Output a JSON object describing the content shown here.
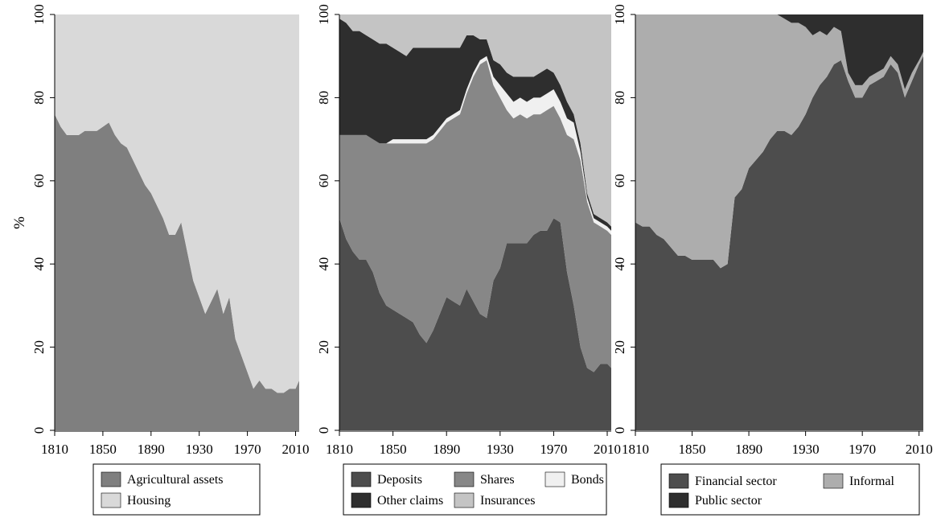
{
  "chart_data": [
    {
      "type": "area",
      "stacked": true,
      "ylabel": "%",
      "ylim": [
        0,
        100
      ],
      "xlim": [
        1810,
        2013
      ],
      "x_ticks": [
        "1810",
        "1850",
        "1890",
        "1930",
        "1970",
        "2010"
      ],
      "y_ticks": [
        "0",
        "20",
        "40",
        "60",
        "80",
        "100"
      ],
      "legend_position": "bottom",
      "x": [
        1810,
        1815,
        1820,
        1825,
        1830,
        1835,
        1840,
        1845,
        1850,
        1855,
        1860,
        1865,
        1870,
        1875,
        1880,
        1885,
        1890,
        1895,
        1900,
        1905,
        1910,
        1915,
        1920,
        1925,
        1930,
        1935,
        1940,
        1945,
        1950,
        1955,
        1960,
        1965,
        1970,
        1975,
        1980,
        1985,
        1990,
        1995,
        2000,
        2005,
        2010,
        2013
      ],
      "series": [
        {
          "name": "Agricultural assets",
          "color": "#7f7f7f",
          "values": [
            76,
            73,
            71,
            71,
            71,
            72,
            72,
            72,
            73,
            74,
            71,
            69,
            68,
            65,
            62,
            59,
            57,
            54,
            51,
            47,
            47,
            50,
            43,
            36,
            32,
            28,
            31,
            34,
            28,
            32,
            22,
            18,
            14,
            10,
            12,
            10,
            10,
            9,
            9,
            10,
            10,
            12
          ]
        },
        {
          "name": "Housing",
          "color": "#d9d9d9",
          "values": [
            24,
            27,
            29,
            29,
            29,
            28,
            28,
            28,
            27,
            26,
            29,
            31,
            32,
            35,
            38,
            41,
            43,
            46,
            49,
            53,
            53,
            50,
            57,
            64,
            68,
            72,
            69,
            66,
            72,
            68,
            78,
            82,
            86,
            90,
            88,
            90,
            90,
            91,
            91,
            90,
            90,
            88
          ]
        }
      ]
    },
    {
      "type": "area",
      "stacked": true,
      "ylim": [
        0,
        100
      ],
      "xlim": [
        1810,
        2013
      ],
      "x_ticks": [
        "1810",
        "1850",
        "1890",
        "1930",
        "1970",
        "2010"
      ],
      "y_ticks": [
        "0",
        "20",
        "40",
        "60",
        "80",
        "100"
      ],
      "legend_position": "bottom",
      "x": [
        1810,
        1815,
        1820,
        1825,
        1830,
        1835,
        1840,
        1845,
        1850,
        1855,
        1860,
        1865,
        1870,
        1875,
        1880,
        1885,
        1890,
        1895,
        1900,
        1905,
        1910,
        1915,
        1920,
        1925,
        1930,
        1935,
        1940,
        1945,
        1950,
        1955,
        1960,
        1965,
        1970,
        1975,
        1980,
        1985,
        1990,
        1995,
        2000,
        2005,
        2010,
        2013
      ],
      "series": [
        {
          "name": "Deposits",
          "color": "#4d4d4d",
          "values": [
            51,
            46,
            43,
            41,
            41,
            38,
            33,
            30,
            29,
            28,
            27,
            26,
            23,
            21,
            24,
            28,
            32,
            31,
            30,
            34,
            31,
            28,
            27,
            36,
            39,
            45,
            45,
            45,
            45,
            47,
            48,
            48,
            51,
            50,
            38,
            30,
            20,
            15,
            14,
            16,
            16,
            15
          ]
        },
        {
          "name": "Shares",
          "color": "#878787",
          "values": [
            20,
            25,
            28,
            30,
            30,
            32,
            36,
            39,
            40,
            41,
            42,
            43,
            46,
            48,
            46,
            44,
            42,
            44,
            46,
            47,
            54,
            60,
            62,
            47,
            41,
            32,
            30,
            31,
            30,
            29,
            28,
            29,
            27,
            25,
            33,
            40,
            45,
            40,
            36,
            33,
            32,
            32
          ]
        },
        {
          "name": "Bonds",
          "color": "#f0f0f0",
          "values": [
            0,
            0,
            0,
            0,
            0,
            0,
            0,
            0,
            1,
            1,
            1,
            1,
            1,
            1,
            1,
            1,
            1,
            1,
            1,
            1,
            1,
            1,
            1,
            2,
            3,
            4,
            4,
            4,
            4,
            4,
            4,
            4,
            4,
            4,
            4,
            4,
            2,
            1,
            1,
            1,
            1,
            1
          ]
        },
        {
          "name": "Other claims",
          "color": "#2e2e2e",
          "values": [
            28,
            27,
            25,
            25,
            24,
            24,
            24,
            24,
            22,
            21,
            20,
            22,
            22,
            22,
            21,
            19,
            17,
            16,
            15,
            13,
            9,
            5,
            4,
            4,
            5,
            5,
            6,
            5,
            6,
            5,
            6,
            6,
            4,
            4,
            4,
            2,
            2,
            1,
            1,
            1,
            1,
            1
          ]
        },
        {
          "name": "Insurances",
          "color": "#c4c4c4",
          "values": [
            1,
            2,
            4,
            4,
            5,
            6,
            7,
            7,
            8,
            9,
            10,
            8,
            8,
            8,
            8,
            8,
            8,
            8,
            8,
            5,
            5,
            6,
            6,
            11,
            12,
            14,
            15,
            15,
            15,
            15,
            14,
            13,
            14,
            17,
            21,
            24,
            31,
            43,
            48,
            49,
            50,
            51
          ]
        }
      ]
    },
    {
      "type": "area",
      "stacked": true,
      "ylim": [
        0,
        100
      ],
      "xlim": [
        1810,
        2013
      ],
      "x_ticks": [
        "1810",
        "1850",
        "1890",
        "1930",
        "1970",
        "2010"
      ],
      "y_ticks": [
        "0",
        "20",
        "40",
        "60",
        "80",
        "100"
      ],
      "legend_position": "bottom",
      "x": [
        1810,
        1815,
        1820,
        1825,
        1830,
        1835,
        1840,
        1845,
        1850,
        1855,
        1860,
        1865,
        1870,
        1875,
        1880,
        1885,
        1890,
        1895,
        1900,
        1905,
        1910,
        1915,
        1920,
        1925,
        1930,
        1935,
        1940,
        1945,
        1950,
        1955,
        1960,
        1965,
        1970,
        1975,
        1980,
        1985,
        1990,
        1995,
        2000,
        2005,
        2010,
        2013
      ],
      "series": [
        {
          "name": "Financial sector",
          "color": "#4d4d4d",
          "values": [
            50,
            49,
            49,
            47,
            46,
            44,
            42,
            42,
            41,
            41,
            41,
            41,
            39,
            40,
            56,
            58,
            63,
            65,
            67,
            70,
            72,
            72,
            71,
            73,
            76,
            80,
            83,
            85,
            88,
            89,
            84,
            80,
            80,
            83,
            84,
            85,
            88,
            86,
            80,
            84,
            88,
            90
          ]
        },
        {
          "name": "Informal",
          "color": "#adadad",
          "values": [
            50,
            51,
            51,
            53,
            54,
            56,
            58,
            58,
            59,
            59,
            59,
            59,
            61,
            60,
            44,
            42,
            37,
            35,
            33,
            30,
            28,
            27,
            27,
            25,
            21,
            15,
            13,
            10,
            9,
            7,
            2,
            3,
            3,
            2,
            2,
            2,
            2,
            2,
            2,
            2,
            1,
            1
          ]
        },
        {
          "name": "Public sector",
          "color": "#2e2e2e",
          "values": [
            0,
            0,
            0,
            0,
            0,
            0,
            0,
            0,
            0,
            0,
            0,
            0,
            0,
            0,
            0,
            0,
            0,
            0,
            0,
            0,
            0,
            1,
            2,
            2,
            3,
            5,
            4,
            5,
            3,
            4,
            14,
            17,
            17,
            15,
            14,
            13,
            10,
            12,
            18,
            14,
            11,
            9
          ]
        }
      ]
    }
  ],
  "legends": [
    {
      "items": [
        {
          "label": "Agricultural assets",
          "color": "#7f7f7f"
        },
        {
          "label": "Housing",
          "color": "#d9d9d9"
        }
      ]
    },
    {
      "items": [
        {
          "label": "Deposits",
          "color": "#4d4d4d"
        },
        {
          "label": "Shares",
          "color": "#878787"
        },
        {
          "label": "Bonds",
          "color": "#f0f0f0"
        },
        {
          "label": "Other claims",
          "color": "#2e2e2e"
        },
        {
          "label": "Insurances",
          "color": "#c4c4c4"
        }
      ]
    },
    {
      "items": [
        {
          "label": "Financial sector",
          "color": "#4d4d4d"
        },
        {
          "label": "Informal",
          "color": "#adadad"
        },
        {
          "label": "Public sector",
          "color": "#2e2e2e"
        }
      ]
    }
  ]
}
